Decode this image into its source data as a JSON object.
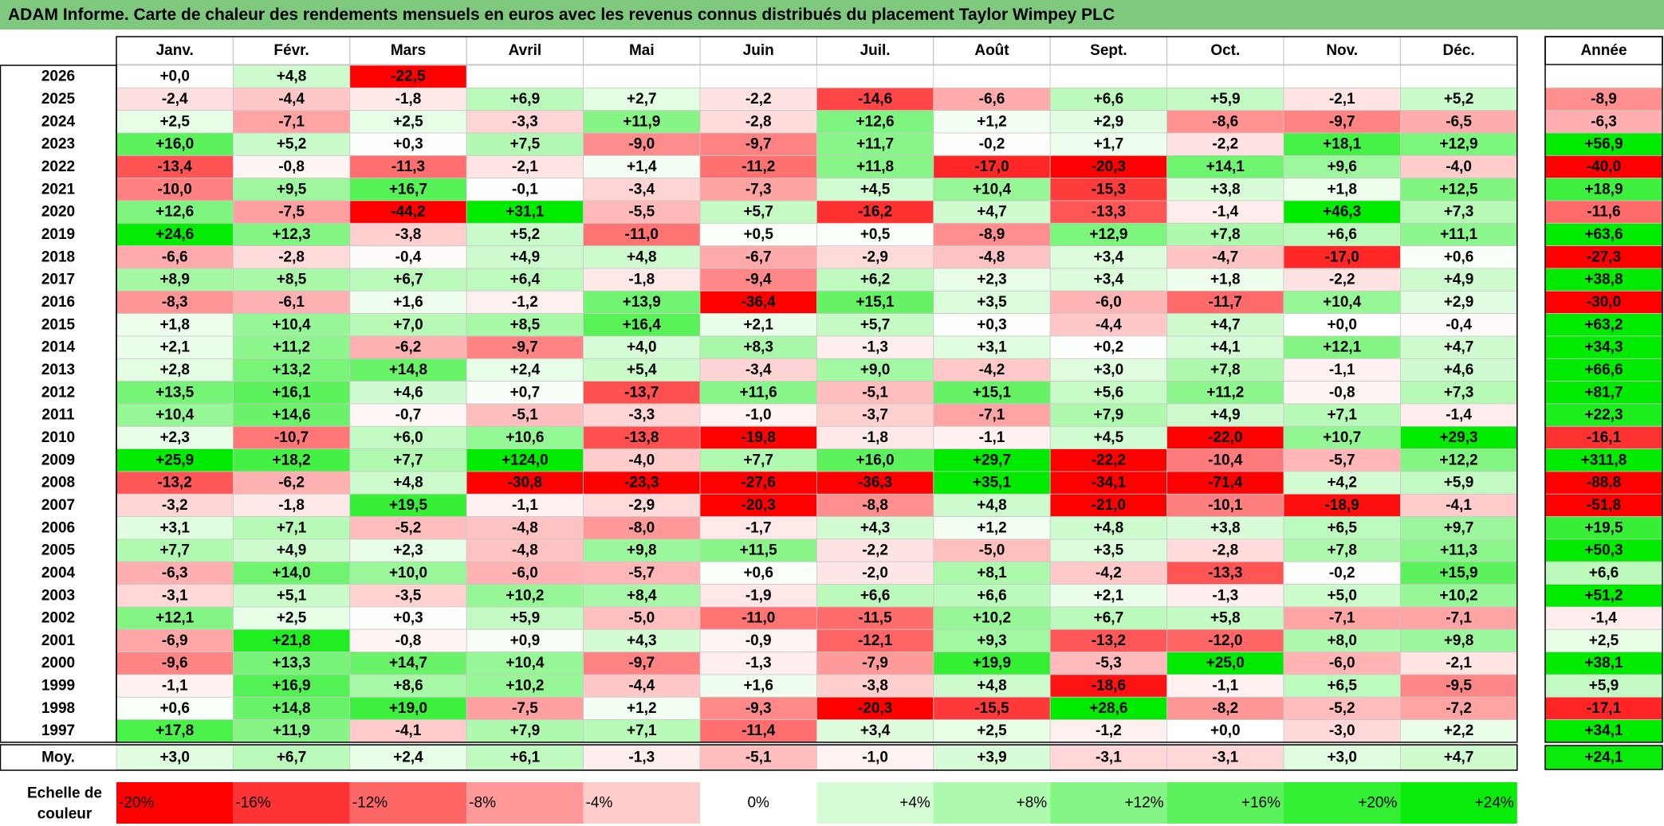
{
  "title": "ADAM Informe. Carte de chaleur des rendements mensuels en euros avec les revenus connus distribués du placement Taylor Wimpey PLC",
  "chart_data": {
    "type": "heatmap",
    "months": [
      "Janv.",
      "Févr.",
      "Mars",
      "Avril",
      "Mai",
      "Juin",
      "Juil.",
      "Août",
      "Sept.",
      "Oct.",
      "Nov.",
      "Déc."
    ],
    "year_header": "Année",
    "avg_label": "Moy.",
    "scale_label_line1": "Echelle de",
    "scale_label_line2": "couleur",
    "rows": [
      {
        "year": "2026",
        "values": [
          "+0,0",
          "+4,8",
          "-22,5",
          "",
          "",
          "",
          "",
          "",
          "",
          "",
          "",
          ""
        ],
        "annual": ""
      },
      {
        "year": "2025",
        "values": [
          "-2,4",
          "-4,4",
          "-1,8",
          "+6,9",
          "+2,7",
          "-2,2",
          "-14,6",
          "-6,6",
          "+6,6",
          "+5,9",
          "-2,1",
          "+5,2"
        ],
        "annual": "-8,9"
      },
      {
        "year": "2024",
        "values": [
          "+2,5",
          "-7,1",
          "+2,5",
          "-3,3",
          "+11,9",
          "-2,8",
          "+12,6",
          "+1,2",
          "+2,9",
          "-8,6",
          "-9,7",
          "-6,5"
        ],
        "annual": "-6,3"
      },
      {
        "year": "2023",
        "values": [
          "+16,0",
          "+5,2",
          "+0,3",
          "+7,5",
          "-9,0",
          "-9,7",
          "+11,7",
          "-0,2",
          "+1,7",
          "-2,2",
          "+18,1",
          "+12,9"
        ],
        "annual": "+56,9"
      },
      {
        "year": "2022",
        "values": [
          "-13,4",
          "-0,8",
          "-11,3",
          "-2,1",
          "+1,4",
          "-11,2",
          "+11,8",
          "-17,0",
          "-20,3",
          "+14,1",
          "+9,6",
          "-4,0"
        ],
        "annual": "-40,0"
      },
      {
        "year": "2021",
        "values": [
          "-10,0",
          "+9,5",
          "+16,7",
          "-0,1",
          "-3,4",
          "-7,3",
          "+4,5",
          "+10,4",
          "-15,3",
          "+3,8",
          "+1,8",
          "+12,5"
        ],
        "annual": "+18,9"
      },
      {
        "year": "2020",
        "values": [
          "+12,6",
          "-7,5",
          "-44,2",
          "+31,1",
          "-5,5",
          "+5,7",
          "-16,2",
          "+4,7",
          "-13,3",
          "-1,4",
          "+46,3",
          "+7,3"
        ],
        "annual": "-11,6"
      },
      {
        "year": "2019",
        "values": [
          "+24,6",
          "+12,3",
          "-3,8",
          "+5,2",
          "-11,0",
          "+0,5",
          "+0,5",
          "-8,9",
          "+12,9",
          "+7,8",
          "+6,6",
          "+11,1"
        ],
        "annual": "+63,6"
      },
      {
        "year": "2018",
        "values": [
          "-6,6",
          "-2,8",
          "-0,4",
          "+4,9",
          "+4,8",
          "-6,7",
          "-2,9",
          "-4,8",
          "+3,4",
          "-4,7",
          "-17,0",
          "+0,6"
        ],
        "annual": "-27,3"
      },
      {
        "year": "2017",
        "values": [
          "+8,9",
          "+8,5",
          "+6,7",
          "+6,4",
          "-1,8",
          "-9,4",
          "+6,2",
          "+2,3",
          "+3,4",
          "+1,8",
          "-2,2",
          "+4,9"
        ],
        "annual": "+38,8"
      },
      {
        "year": "2016",
        "values": [
          "-8,3",
          "-6,1",
          "+1,6",
          "-1,2",
          "+13,9",
          "-36,4",
          "+15,1",
          "+3,5",
          "-6,0",
          "-11,7",
          "+10,4",
          "+2,9"
        ],
        "annual": "-30,0"
      },
      {
        "year": "2015",
        "values": [
          "+1,8",
          "+10,4",
          "+7,0",
          "+8,5",
          "+16,4",
          "+2,1",
          "+5,7",
          "+0,3",
          "-4,4",
          "+4,7",
          "+0,0",
          "-0,4"
        ],
        "annual": "+63,2"
      },
      {
        "year": "2014",
        "values": [
          "+2,1",
          "+11,2",
          "-6,2",
          "-9,7",
          "+4,0",
          "+8,3",
          "-1,3",
          "+3,1",
          "+0,2",
          "+4,1",
          "+12,1",
          "+4,7"
        ],
        "annual": "+34,3"
      },
      {
        "year": "2013",
        "values": [
          "+2,8",
          "+13,2",
          "+14,8",
          "+2,4",
          "+5,4",
          "-3,4",
          "+9,0",
          "-4,2",
          "+3,0",
          "+7,8",
          "-1,1",
          "+4,6"
        ],
        "annual": "+66,6"
      },
      {
        "year": "2012",
        "values": [
          "+13,5",
          "+16,1",
          "+4,6",
          "+0,7",
          "-13,7",
          "+11,6",
          "-5,1",
          "+15,1",
          "+5,6",
          "+11,2",
          "-0,8",
          "+7,3"
        ],
        "annual": "+81,7"
      },
      {
        "year": "2011",
        "values": [
          "+10,4",
          "+14,6",
          "-0,7",
          "-5,1",
          "-3,3",
          "-1,0",
          "-3,7",
          "-7,1",
          "+7,9",
          "+4,9",
          "+7,1",
          "-1,4"
        ],
        "annual": "+22,3"
      },
      {
        "year": "2010",
        "values": [
          "+2,3",
          "-10,7",
          "+6,0",
          "+10,6",
          "-13,8",
          "-19,8",
          "-1,8",
          "-1,1",
          "+4,5",
          "-22,0",
          "+10,7",
          "+29,3"
        ],
        "annual": "-16,1"
      },
      {
        "year": "2009",
        "values": [
          "+25,9",
          "+18,2",
          "+7,7",
          "+124,0",
          "-4,0",
          "+7,7",
          "+16,0",
          "+29,7",
          "-22,2",
          "-10,4",
          "-5,7",
          "+12,2"
        ],
        "annual": "+311,8"
      },
      {
        "year": "2008",
        "values": [
          "-13,2",
          "-6,2",
          "+4,8",
          "-30,8",
          "-23,3",
          "-27,6",
          "-36,3",
          "+35,1",
          "-34,1",
          "-71,4",
          "+4,2",
          "+5,9"
        ],
        "annual": "-88,8"
      },
      {
        "year": "2007",
        "values": [
          "-3,2",
          "-1,8",
          "+19,5",
          "-1,1",
          "-2,9",
          "-20,3",
          "-8,8",
          "+4,8",
          "-21,0",
          "-10,1",
          "-18,9",
          "-4,1"
        ],
        "annual": "-51,8"
      },
      {
        "year": "2006",
        "values": [
          "+3,1",
          "+7,1",
          "-5,2",
          "-4,8",
          "-8,0",
          "-1,7",
          "+4,3",
          "+1,2",
          "+4,8",
          "+3,8",
          "+6,5",
          "+9,7"
        ],
        "annual": "+19,5"
      },
      {
        "year": "2005",
        "values": [
          "+7,7",
          "+4,9",
          "+2,3",
          "-4,8",
          "+9,8",
          "+11,5",
          "-2,2",
          "-5,0",
          "+3,5",
          "-2,8",
          "+7,8",
          "+11,3"
        ],
        "annual": "+50,3"
      },
      {
        "year": "2004",
        "values": [
          "-6,3",
          "+14,0",
          "+10,0",
          "-6,0",
          "-5,7",
          "+0,6",
          "-2,0",
          "+8,1",
          "-4,2",
          "-13,3",
          "-0,2",
          "+15,9"
        ],
        "annual": "+6,6"
      },
      {
        "year": "2003",
        "values": [
          "-3,1",
          "+5,1",
          "-3,5",
          "+10,2",
          "+8,4",
          "-1,9",
          "+6,6",
          "+6,6",
          "+2,1",
          "-1,3",
          "+5,0",
          "+10,2"
        ],
        "annual": "+51,2"
      },
      {
        "year": "2002",
        "values": [
          "+12,1",
          "+2,5",
          "+0,3",
          "+5,9",
          "-5,0",
          "-11,0",
          "-11,5",
          "+10,2",
          "+6,7",
          "+5,8",
          "-7,1",
          "-7,1"
        ],
        "annual": "-1,4"
      },
      {
        "year": "2001",
        "values": [
          "-6,9",
          "+21,8",
          "-0,8",
          "+0,9",
          "+4,3",
          "-0,9",
          "-12,1",
          "+9,3",
          "-13,2",
          "-12,0",
          "+8,0",
          "+9,8"
        ],
        "annual": "+2,5"
      },
      {
        "year": "2000",
        "values": [
          "-9,6",
          "+13,3",
          "+14,7",
          "+10,4",
          "-9,7",
          "-1,3",
          "-7,9",
          "+19,9",
          "-5,3",
          "+25,0",
          "-6,0",
          "-2,1"
        ],
        "annual": "+38,1"
      },
      {
        "year": "1999",
        "values": [
          "-1,1",
          "+16,9",
          "+8,6",
          "+10,2",
          "-4,4",
          "+1,6",
          "-3,8",
          "+4,8",
          "-18,6",
          "-1,1",
          "+6,5",
          "-9,5"
        ],
        "annual": "+5,9"
      },
      {
        "year": "1998",
        "values": [
          "+0,6",
          "+14,8",
          "+19,0",
          "-7,5",
          "+1,2",
          "-9,3",
          "-20,3",
          "-15,5",
          "+28,6",
          "-8,2",
          "-5,2",
          "-7,2"
        ],
        "annual": "-17,1"
      },
      {
        "year": "1997",
        "values": [
          "+17,8",
          "+11,9",
          "-4,1",
          "+7,9",
          "+7,1",
          "-11,4",
          "+3,4",
          "+2,5",
          "-1,2",
          "+0,0",
          "-3,0",
          "+2,2"
        ],
        "annual": "+34,1"
      }
    ],
    "averages": [
      "+3,0",
      "+6,7",
      "+2,4",
      "+6,1",
      "-1,3",
      "-5,1",
      "-1,0",
      "+3,9",
      "-3,1",
      "-3,1",
      "+3,0",
      "+4,7"
    ],
    "average_annual": "+24,1",
    "scale": [
      "-20%",
      "-16%",
      "-12%",
      "-8%",
      "-4%",
      "0%",
      "+4%",
      "+8%",
      "+12%",
      "+16%",
      "+20%",
      "+24%"
    ],
    "scale_range": [
      -20,
      24
    ]
  }
}
